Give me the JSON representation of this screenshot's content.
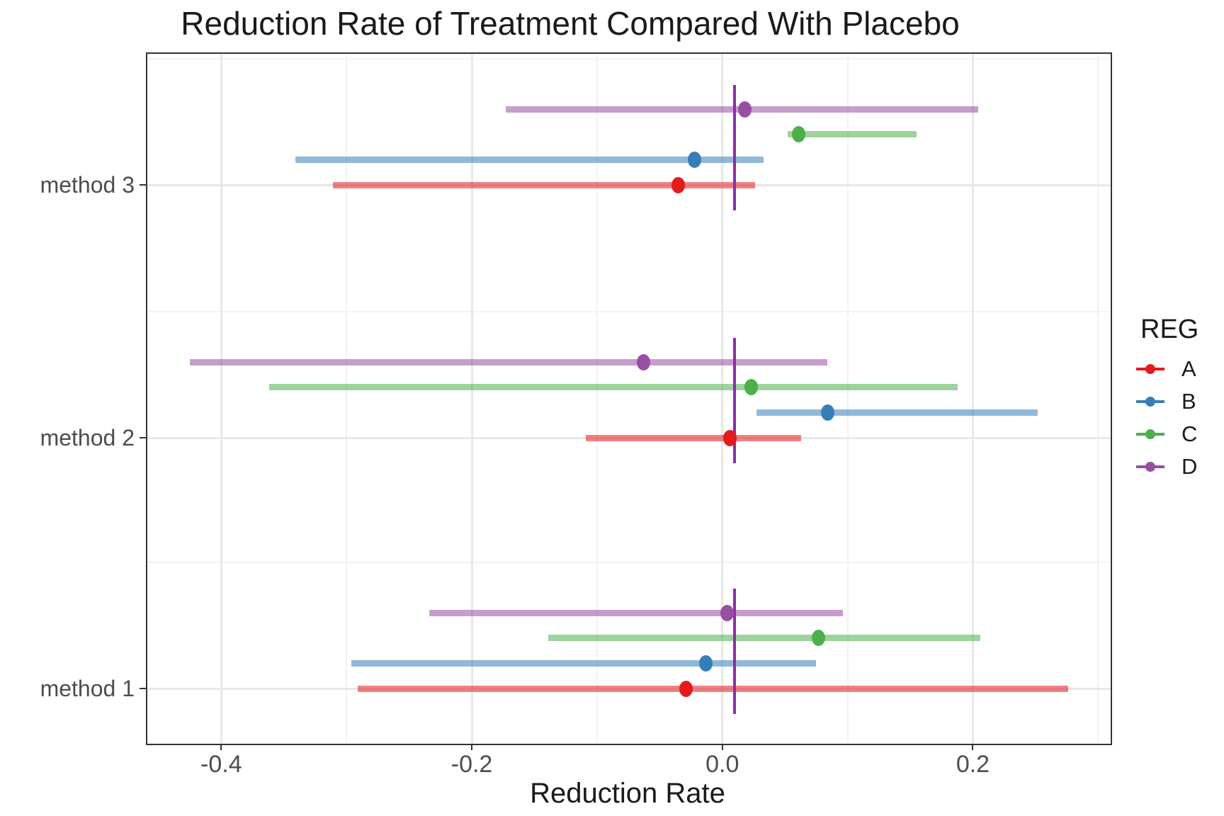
{
  "chart_data": {
    "type": "scatter",
    "style": "forest plot: point estimates with horizontal confidence-interval bars, 4 series dodged within each method group",
    "title": "Reduction Rate of Treatment Compared With Placebo",
    "xlabel": "Reduction Rate",
    "ylabel": "",
    "categories": [
      "method 1",
      "method 2",
      "method 3"
    ],
    "x_axis": {
      "range": [
        -0.459,
        0.31
      ],
      "major_ticks": [
        -0.4,
        -0.2,
        0.0,
        0.2
      ],
      "major_tick_labels": [
        "-0.4",
        "-0.2",
        "0.0",
        "0.2"
      ],
      "minor_ticks": [
        -0.3,
        -0.1,
        0.1,
        0.3
      ]
    },
    "grid": "major and minor vertical + horizontal light gray gridlines, framed panel",
    "reference_line": {
      "x": 0.01,
      "orientation": "vertical",
      "per_group": true,
      "color": "#8E2DA8"
    },
    "legend": {
      "title": "REG",
      "position": "right",
      "entries": [
        {
          "label": "A",
          "color": "#E41A1C"
        },
        {
          "label": "B",
          "color": "#377EB8"
        },
        {
          "label": "C",
          "color": "#4DAF4A"
        },
        {
          "label": "D",
          "color": "#984EA3"
        }
      ]
    },
    "series": [
      {
        "name": "A",
        "color": "#E41A1C",
        "values": [
          {
            "category": "method 1",
            "est": -0.029,
            "lo": -0.291,
            "hi": 0.276
          },
          {
            "category": "method 2",
            "est": 0.006,
            "lo": -0.109,
            "hi": 0.063
          },
          {
            "category": "method 3",
            "est": -0.035,
            "lo": -0.311,
            "hi": 0.026
          }
        ]
      },
      {
        "name": "B",
        "color": "#377EB8",
        "values": [
          {
            "category": "method 1",
            "est": -0.013,
            "lo": -0.296,
            "hi": 0.075
          },
          {
            "category": "method 2",
            "est": 0.084,
            "lo": 0.027,
            "hi": 0.252
          },
          {
            "category": "method 3",
            "est": -0.022,
            "lo": -0.341,
            "hi": 0.033
          }
        ]
      },
      {
        "name": "C",
        "color": "#4DAF4A",
        "values": [
          {
            "category": "method 1",
            "est": 0.077,
            "lo": -0.139,
            "hi": 0.206
          },
          {
            "category": "method 2",
            "est": 0.023,
            "lo": -0.362,
            "hi": 0.188
          },
          {
            "category": "method 3",
            "est": 0.061,
            "lo": 0.052,
            "hi": 0.155
          }
        ]
      },
      {
        "name": "D",
        "color": "#984EA3",
        "values": [
          {
            "category": "method 1",
            "est": 0.004,
            "lo": -0.234,
            "hi": 0.096
          },
          {
            "category": "method 2",
            "est": -0.063,
            "lo": -0.425,
            "hi": 0.084
          },
          {
            "category": "method 3",
            "est": 0.018,
            "lo": -0.173,
            "hi": 0.204
          }
        ]
      }
    ]
  }
}
